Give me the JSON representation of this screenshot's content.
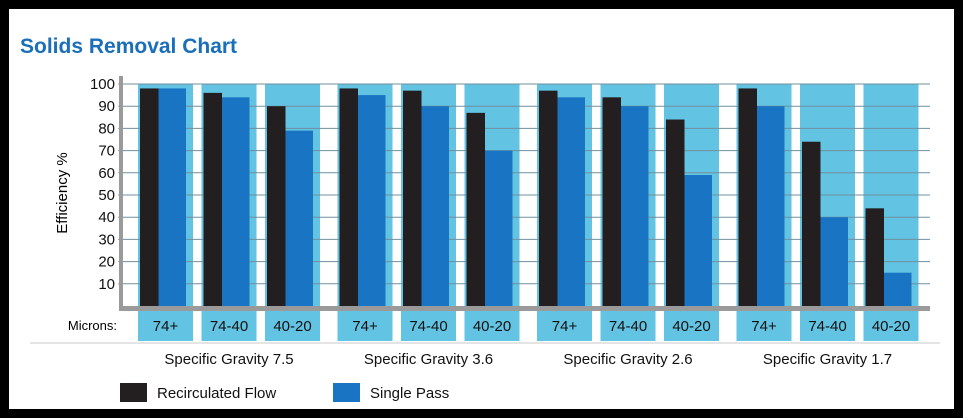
{
  "colors": {
    "title": "#1a6fb8",
    "recirculated": "#231f20",
    "single_pass": "#1a74c4",
    "category_band": "#63c3e2",
    "axis": "#9a9a9a",
    "grid": "#6f8f9d"
  },
  "chart_data": {
    "type": "bar",
    "title": "Solids Removal Chart",
    "ylabel": "Efficiency %",
    "x_row_label": "Microns:",
    "ylim": [
      0,
      100
    ],
    "yticks": [
      10,
      20,
      30,
      40,
      50,
      60,
      70,
      80,
      90,
      100
    ],
    "grid": true,
    "legend_position": "bottom-left",
    "groups": [
      {
        "label": "Specific Gravity 7.5",
        "categories": [
          "74+",
          "74-40",
          "40-20"
        ]
      },
      {
        "label": "Specific Gravity 3.6",
        "categories": [
          "74+",
          "74-40",
          "40-20"
        ]
      },
      {
        "label": "Specific Gravity 2.6",
        "categories": [
          "74+",
          "74-40",
          "40-20"
        ]
      },
      {
        "label": "Specific Gravity 1.7",
        "categories": [
          "74+",
          "74-40",
          "40-20"
        ]
      }
    ],
    "series": [
      {
        "name": "Recirculated Flow",
        "values": [
          98,
          96,
          90,
          98,
          97,
          87,
          97,
          94,
          84,
          98,
          74,
          44
        ]
      },
      {
        "name": "Single Pass",
        "values": [
          98,
          94,
          79,
          95,
          90,
          70,
          94,
          90,
          59,
          90,
          40,
          15
        ]
      }
    ]
  }
}
